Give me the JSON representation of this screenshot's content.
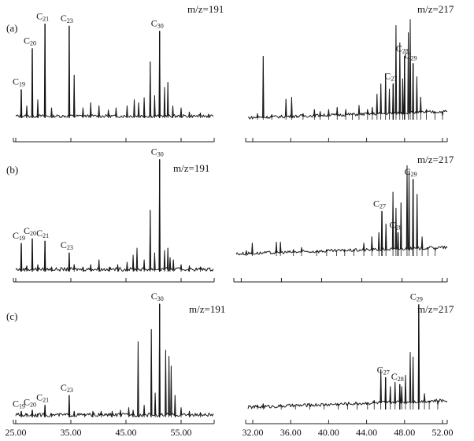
{
  "chart_data": [
    {
      "type": "line",
      "panel": "(a)",
      "mz": "m/z=191",
      "xlim": [
        25,
        61
      ],
      "ticks": [],
      "peaks": [
        {
          "label": "C19",
          "sub": "19",
          "x": 26.0,
          "h": 0.28
        },
        {
          "label": "C20",
          "sub": "20",
          "x": 28.0,
          "h": 0.68
        },
        {
          "label": "C21",
          "sub": "21",
          "x": 30.3,
          "h": 0.92
        },
        {
          "label": "C23",
          "sub": "23",
          "x": 34.7,
          "h": 0.9
        },
        {
          "label": "C30",
          "sub": "30",
          "x": 51.1,
          "h": 0.85
        }
      ],
      "minor": [
        [
          27.0,
          0.12
        ],
        [
          29.0,
          0.18
        ],
        [
          31.5,
          0.1
        ],
        [
          35.6,
          0.42
        ],
        [
          37.2,
          0.1
        ],
        [
          38.6,
          0.15
        ],
        [
          40.1,
          0.12
        ],
        [
          41.8,
          0.08
        ],
        [
          43.2,
          0.1
        ],
        [
          45.2,
          0.12
        ],
        [
          46.5,
          0.18
        ],
        [
          47.3,
          0.15
        ],
        [
          48.3,
          0.2
        ],
        [
          49.4,
          0.55
        ],
        [
          50.2,
          0.22
        ],
        [
          52.0,
          0.3
        ],
        [
          52.6,
          0.35
        ],
        [
          53.5,
          0.12
        ],
        [
          55.0,
          0.1
        ],
        [
          56.5,
          0.06
        ],
        [
          58.5,
          0.05
        ],
        [
          60.0,
          0.04
        ]
      ]
    },
    {
      "type": "line",
      "panel": "",
      "mz": "m/z=217",
      "xlim": [
        31.5,
        52.5
      ],
      "ticks": [],
      "peaks": [
        {
          "label": "C27",
          "sub": "27",
          "x": 46.8,
          "h": 0.35
        },
        {
          "label": "C28",
          "sub": "28",
          "x": 48.0,
          "h": 0.62
        },
        {
          "label": "C29",
          "sub": "29",
          "x": 48.9,
          "h": 0.55
        }
      ],
      "minor": [
        [
          32.5,
          0.06
        ],
        [
          33.1,
          0.62
        ],
        [
          34.0,
          0.05
        ],
        [
          35.5,
          0.2
        ],
        [
          36.1,
          0.22
        ],
        [
          37.3,
          0.06
        ],
        [
          38.5,
          0.1
        ],
        [
          39.1,
          0.08
        ],
        [
          40.0,
          0.1
        ],
        [
          40.9,
          0.12
        ],
        [
          41.8,
          0.1
        ],
        [
          42.5,
          0.06
        ],
        [
          43.2,
          0.14
        ],
        [
          44.1,
          0.1
        ],
        [
          44.6,
          0.12
        ],
        [
          45.1,
          0.25
        ],
        [
          45.5,
          0.35
        ],
        [
          46.0,
          0.45
        ],
        [
          46.4,
          0.3
        ],
        [
          47.1,
          0.92
        ],
        [
          47.5,
          0.75
        ],
        [
          47.8,
          0.4
        ],
        [
          48.4,
          0.85
        ],
        [
          48.6,
          0.98
        ],
        [
          49.3,
          0.42
        ],
        [
          49.7,
          0.22
        ],
        [
          50.3,
          0.1
        ],
        [
          51.2,
          0.06
        ],
        [
          52.0,
          0.04
        ]
      ]
    },
    {
      "type": "line",
      "panel": "(b)",
      "mz": "m/z=191",
      "xlim": [
        25,
        61
      ],
      "ticks": [],
      "peaks": [
        {
          "label": "C19",
          "sub": "19",
          "x": 26.0,
          "h": 0.24
        },
        {
          "label": "C20",
          "sub": "20",
          "x": 28.0,
          "h": 0.28
        },
        {
          "label": "C21",
          "sub": "21",
          "x": 30.3,
          "h": 0.26
        },
        {
          "label": "C23",
          "sub": "23",
          "x": 34.7,
          "h": 0.16
        },
        {
          "label": "C30",
          "sub": "30",
          "x": 51.1,
          "h": 0.95
        }
      ],
      "minor": [
        [
          27.0,
          0.05
        ],
        [
          29.0,
          0.06
        ],
        [
          31.5,
          0.04
        ],
        [
          35.6,
          0.06
        ],
        [
          37.2,
          0.04
        ],
        [
          38.6,
          0.06
        ],
        [
          40.1,
          0.1
        ],
        [
          42.0,
          0.04
        ],
        [
          43.5,
          0.06
        ],
        [
          45.2,
          0.08
        ],
        [
          46.3,
          0.14
        ],
        [
          47.0,
          0.2
        ],
        [
          48.3,
          0.1
        ],
        [
          49.4,
          0.52
        ],
        [
          50.2,
          0.16
        ],
        [
          52.0,
          0.18
        ],
        [
          52.6,
          0.2
        ],
        [
          53.0,
          0.12
        ],
        [
          53.6,
          0.1
        ],
        [
          55.0,
          0.06
        ],
        [
          56.5,
          0.05
        ],
        [
          58.5,
          0.04
        ]
      ]
    },
    {
      "type": "line",
      "panel": "",
      "mz": "m/z=217",
      "xlim": [
        31.5,
        52.5
      ],
      "ticks": [],
      "peaks": [
        {
          "label": "C27",
          "sub": "27",
          "x": 46.0,
          "h": 0.42
        },
        {
          "label": "C28",
          "sub": "28",
          "x": 47.6,
          "h": 0.22
        },
        {
          "label": "C29",
          "sub": "29",
          "x": 49.1,
          "h": 0.72
        }
      ],
      "minor": [
        [
          32.5,
          0.05
        ],
        [
          33.1,
          0.12
        ],
        [
          35.5,
          0.13
        ],
        [
          35.9,
          0.13
        ],
        [
          37.2,
          0.06
        ],
        [
          38.0,
          0.08
        ],
        [
          39.5,
          0.05
        ],
        [
          40.5,
          0.06
        ],
        [
          41.5,
          0.05
        ],
        [
          42.3,
          0.06
        ],
        [
          43.2,
          0.06
        ],
        [
          44.2,
          0.12
        ],
        [
          45.0,
          0.18
        ],
        [
          45.7,
          0.22
        ],
        [
          46.4,
          0.3
        ],
        [
          47.1,
          0.6
        ],
        [
          47.4,
          0.45
        ],
        [
          47.9,
          0.5
        ],
        [
          48.5,
          0.85
        ],
        [
          48.7,
          0.8
        ],
        [
          49.5,
          0.58
        ],
        [
          50.0,
          0.18
        ],
        [
          50.6,
          0.08
        ],
        [
          51.3,
          0.05
        ]
      ]
    },
    {
      "type": "line",
      "panel": "(c)",
      "mz": "m/z=191",
      "xlim": [
        25,
        61
      ],
      "ticks": [
        "25.00",
        "35.00",
        "45.00",
        "55.00"
      ],
      "peaks": [
        {
          "label": "C19",
          "sub": "19",
          "x": 26.0,
          "h": 0.05
        },
        {
          "label": "C20",
          "sub": "20",
          "x": 28.0,
          "h": 0.06
        },
        {
          "label": "C21",
          "sub": "21",
          "x": 30.3,
          "h": 0.1
        },
        {
          "label": "C23",
          "sub": "23",
          "x": 34.7,
          "h": 0.18
        },
        {
          "label": "C30",
          "sub": "30",
          "x": 51.1,
          "h": 0.93
        }
      ],
      "minor": [
        [
          27.0,
          0.03
        ],
        [
          29.0,
          0.03
        ],
        [
          31.5,
          0.03
        ],
        [
          35.6,
          0.05
        ],
        [
          37.5,
          0.03
        ],
        [
          39.0,
          0.05
        ],
        [
          40.5,
          0.05
        ],
        [
          42.5,
          0.05
        ],
        [
          44.0,
          0.06
        ],
        [
          45.5,
          0.08
        ],
        [
          46.3,
          0.06
        ],
        [
          47.2,
          0.62
        ],
        [
          48.3,
          0.1
        ],
        [
          49.6,
          0.72
        ],
        [
          50.3,
          0.2
        ],
        [
          52.2,
          0.55
        ],
        [
          52.8,
          0.5
        ],
        [
          53.2,
          0.42
        ],
        [
          53.9,
          0.18
        ],
        [
          55.0,
          0.08
        ],
        [
          56.5,
          0.05
        ],
        [
          58.5,
          0.04
        ]
      ]
    },
    {
      "type": "line",
      "panel": "",
      "mz": "m/z=217",
      "xlim": [
        31.5,
        52.5
      ],
      "ticks": [
        "32.00",
        "36.00",
        "40.00",
        "44.00",
        "48.00",
        "52.00"
      ],
      "peaks": [
        {
          "label": "C27",
          "sub": "27",
          "x": 46.0,
          "h": 0.28
        },
        {
          "label": "C28",
          "sub": "28",
          "x": 47.5,
          "h": 0.22
        },
        {
          "label": "C29",
          "sub": "29",
          "x": 49.5,
          "h": 0.92
        }
      ],
      "minor": [
        [
          32.5,
          0.04
        ],
        [
          33.1,
          0.05
        ],
        [
          35.0,
          0.03
        ],
        [
          36.5,
          0.03
        ],
        [
          38.0,
          0.04
        ],
        [
          39.5,
          0.03
        ],
        [
          41.0,
          0.04
        ],
        [
          42.0,
          0.04
        ],
        [
          43.0,
          0.05
        ],
        [
          44.1,
          0.06
        ],
        [
          44.8,
          0.08
        ],
        [
          45.5,
          0.35
        ],
        [
          46.5,
          0.2
        ],
        [
          47.0,
          0.24
        ],
        [
          47.7,
          0.2
        ],
        [
          48.1,
          0.3
        ],
        [
          48.6,
          0.5
        ],
        [
          48.9,
          0.46
        ],
        [
          50.1,
          0.14
        ],
        [
          50.6,
          0.06
        ],
        [
          51.5,
          0.04
        ]
      ]
    }
  ]
}
